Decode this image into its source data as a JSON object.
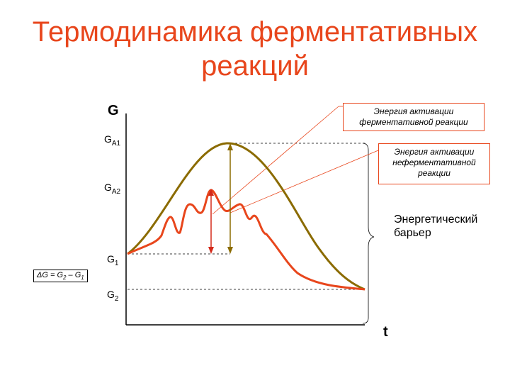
{
  "title": {
    "line1": "Термодинамика ферментативных",
    "line2": "реакций"
  },
  "axes": {
    "y_label": "G",
    "x_label": "t"
  },
  "levels": {
    "ga1": {
      "main": "G",
      "sub": "A1"
    },
    "ga2": {
      "main": "G",
      "sub": "A2"
    },
    "g1": {
      "main": "G",
      "sub": "1"
    },
    "g2": {
      "main": "G",
      "sub": "2"
    }
  },
  "callouts": {
    "enzymatic": "Энергия активации ферментативной реакции",
    "non_enzymatic": "Энергия активации неферментативной реакции"
  },
  "barrier_label": "Энергетический барьер",
  "delta_g": {
    "prefix": "ΔG = G",
    "sub1": "2",
    "middle": " – G",
    "sub2": "1"
  },
  "colors": {
    "title": "#e8461c",
    "enzymatic_curve": "#e8461c",
    "non_enzymatic_curve": "#8b6b00",
    "arrow": "#d42a1a"
  }
}
